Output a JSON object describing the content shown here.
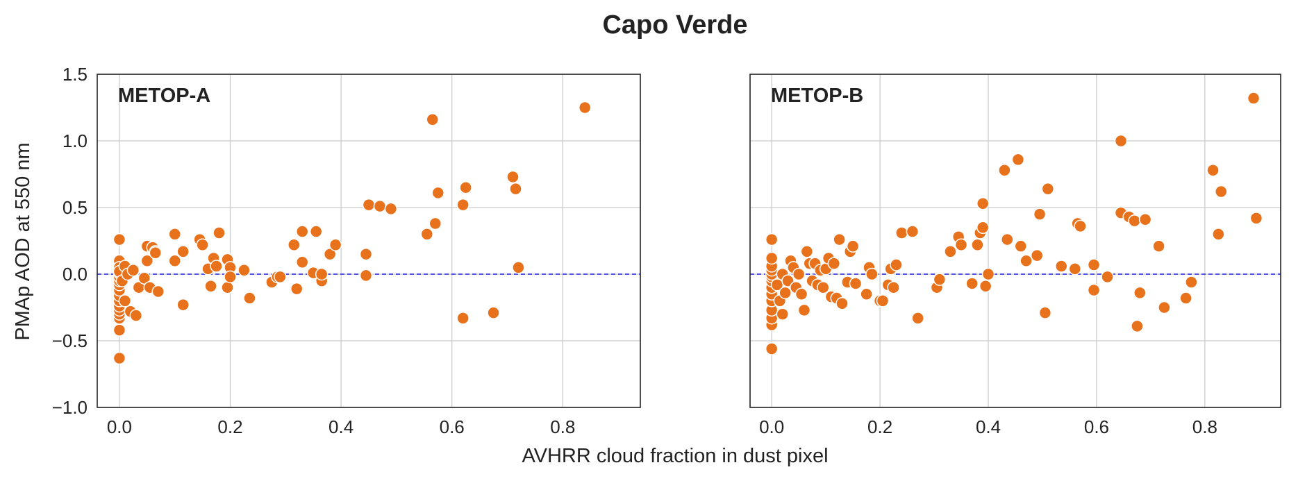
{
  "chart_data": [
    {
      "type": "scatter",
      "suptitle": "Capo Verde",
      "panel_label": "METOP-A",
      "xlabel": "AVHRR cloud fraction in dust pixel",
      "ylabel": "PMAp AOD at 550 nm",
      "xlim": [
        -0.04,
        0.94
      ],
      "ylim": [
        -1.0,
        1.5
      ],
      "xticks": [
        0.0,
        0.2,
        0.4,
        0.6,
        0.8
      ],
      "yticks": [
        -1.0,
        -0.5,
        0.0,
        0.5,
        1.0,
        1.5
      ],
      "xtick_labels": [
        "0.0",
        "0.2",
        "0.4",
        "0.6",
        "0.8"
      ],
      "ytick_labels": [
        "−1.0",
        "−0.5",
        "0.0",
        "0.5",
        "1.0",
        "1.5"
      ],
      "grid": true,
      "reference_line": {
        "y": 0.0,
        "style": "dashed",
        "color": "#1f1fe0"
      },
      "marker_color": "#e8711c",
      "x": [
        0.0,
        0.0,
        0.0,
        0.0,
        0.0,
        0.0,
        0.0,
        0.0,
        0.0,
        0.0,
        0.0,
        0.0,
        0.0,
        0.0,
        0.0,
        0.0,
        0.0,
        0.0,
        0.0,
        0.005,
        0.01,
        0.01,
        0.015,
        0.02,
        0.025,
        0.03,
        0.035,
        0.045,
        0.05,
        0.05,
        0.055,
        0.06,
        0.065,
        0.065,
        0.07,
        0.1,
        0.1,
        0.115,
        0.115,
        0.145,
        0.15,
        0.16,
        0.165,
        0.17,
        0.175,
        0.18,
        0.195,
        0.195,
        0.2,
        0.2,
        0.225,
        0.235,
        0.275,
        0.285,
        0.29,
        0.315,
        0.32,
        0.33,
        0.33,
        0.35,
        0.355,
        0.365,
        0.365,
        0.38,
        0.39,
        0.445,
        0.445,
        0.45,
        0.47,
        0.49,
        0.555,
        0.565,
        0.57,
        0.575,
        0.62,
        0.62,
        0.625,
        0.675,
        0.71,
        0.715,
        0.72,
        0.84
      ],
      "y": [
        -0.63,
        -0.42,
        -0.33,
        -0.3,
        -0.27,
        -0.24,
        -0.2,
        -0.16,
        -0.12,
        -0.08,
        -0.05,
        -0.02,
        0.01,
        0.04,
        0.07,
        0.1,
        0.05,
        0.26,
        0.02,
        -0.05,
        0.06,
        -0.2,
        0.0,
        -0.28,
        0.03,
        -0.31,
        -0.1,
        -0.03,
        0.21,
        0.1,
        -0.1,
        0.2,
        0.17,
        0.16,
        -0.13,
        0.3,
        0.1,
        -0.23,
        0.17,
        0.26,
        0.22,
        0.04,
        -0.09,
        0.12,
        0.06,
        0.31,
        -0.1,
        0.11,
        0.05,
        -0.02,
        0.03,
        -0.18,
        -0.06,
        -0.02,
        -0.02,
        0.22,
        -0.11,
        0.32,
        0.09,
        0.01,
        0.32,
        -0.05,
        0.0,
        0.15,
        0.22,
        0.15,
        -0.01,
        0.52,
        0.51,
        0.49,
        0.3,
        1.16,
        0.38,
        0.61,
        0.52,
        -0.33,
        0.65,
        -0.29,
        0.73,
        0.64,
        0.05,
        1.25
      ]
    },
    {
      "type": "scatter",
      "panel_label": "METOP-B",
      "xlim": [
        -0.04,
        0.94
      ],
      "ylim": [
        -1.0,
        1.5
      ],
      "xticks": [
        0.0,
        0.2,
        0.4,
        0.6,
        0.8
      ],
      "xtick_labels": [
        "0.0",
        "0.2",
        "0.4",
        "0.6",
        "0.8"
      ],
      "grid": true,
      "reference_line": {
        "y": 0.0,
        "style": "dashed",
        "color": "#1f1fe0"
      },
      "marker_color": "#e8711c",
      "x": [
        0.0,
        0.0,
        0.0,
        0.0,
        0.0,
        0.0,
        0.0,
        0.0,
        0.0,
        0.0,
        0.0,
        0.0,
        0.0,
        0.0,
        0.01,
        0.015,
        0.02,
        0.02,
        0.025,
        0.03,
        0.035,
        0.04,
        0.045,
        0.05,
        0.055,
        0.06,
        0.065,
        0.07,
        0.075,
        0.08,
        0.085,
        0.09,
        0.095,
        0.1,
        0.105,
        0.11,
        0.115,
        0.12,
        0.125,
        0.13,
        0.14,
        0.145,
        0.15,
        0.155,
        0.175,
        0.18,
        0.185,
        0.2,
        0.205,
        0.215,
        0.22,
        0.225,
        0.23,
        0.24,
        0.26,
        0.27,
        0.305,
        0.31,
        0.33,
        0.345,
        0.35,
        0.37,
        0.38,
        0.385,
        0.39,
        0.39,
        0.395,
        0.4,
        0.43,
        0.435,
        0.455,
        0.46,
        0.47,
        0.49,
        0.495,
        0.505,
        0.51,
        0.535,
        0.56,
        0.565,
        0.57,
        0.595,
        0.595,
        0.62,
        0.645,
        0.645,
        0.66,
        0.67,
        0.675,
        0.68,
        0.69,
        0.715,
        0.725,
        0.765,
        0.775,
        0.815,
        0.825,
        0.83,
        0.89,
        0.895
      ],
      "y": [
        -0.56,
        -0.38,
        -0.33,
        -0.27,
        -0.2,
        -0.15,
        -0.1,
        -0.05,
        -0.02,
        0.0,
        0.03,
        0.06,
        0.12,
        0.26,
        -0.08,
        -0.2,
        0.0,
        -0.3,
        -0.14,
        -0.05,
        0.1,
        0.05,
        -0.1,
        0.0,
        -0.15,
        -0.27,
        0.17,
        0.08,
        -0.05,
        0.08,
        -0.08,
        0.03,
        -0.1,
        0.04,
        0.12,
        -0.17,
        0.08,
        -0.18,
        0.26,
        -0.22,
        -0.06,
        0.17,
        0.21,
        -0.07,
        -0.15,
        0.05,
        0.0,
        -0.2,
        -0.2,
        -0.08,
        0.04,
        -0.1,
        0.07,
        0.31,
        0.32,
        -0.33,
        -0.1,
        -0.04,
        0.17,
        0.28,
        0.22,
        -0.07,
        0.22,
        0.31,
        0.53,
        0.35,
        -0.09,
        0.0,
        0.78,
        0.26,
        0.86,
        0.21,
        0.1,
        0.14,
        0.45,
        -0.29,
        0.64,
        0.06,
        0.04,
        0.38,
        0.36,
        0.07,
        -0.12,
        -0.02,
        1.0,
        0.46,
        0.43,
        0.4,
        -0.39,
        -0.14,
        0.41,
        0.21,
        -0.25,
        -0.18,
        -0.06,
        0.78,
        0.3,
        0.62,
        1.32,
        0.42
      ]
    }
  ]
}
